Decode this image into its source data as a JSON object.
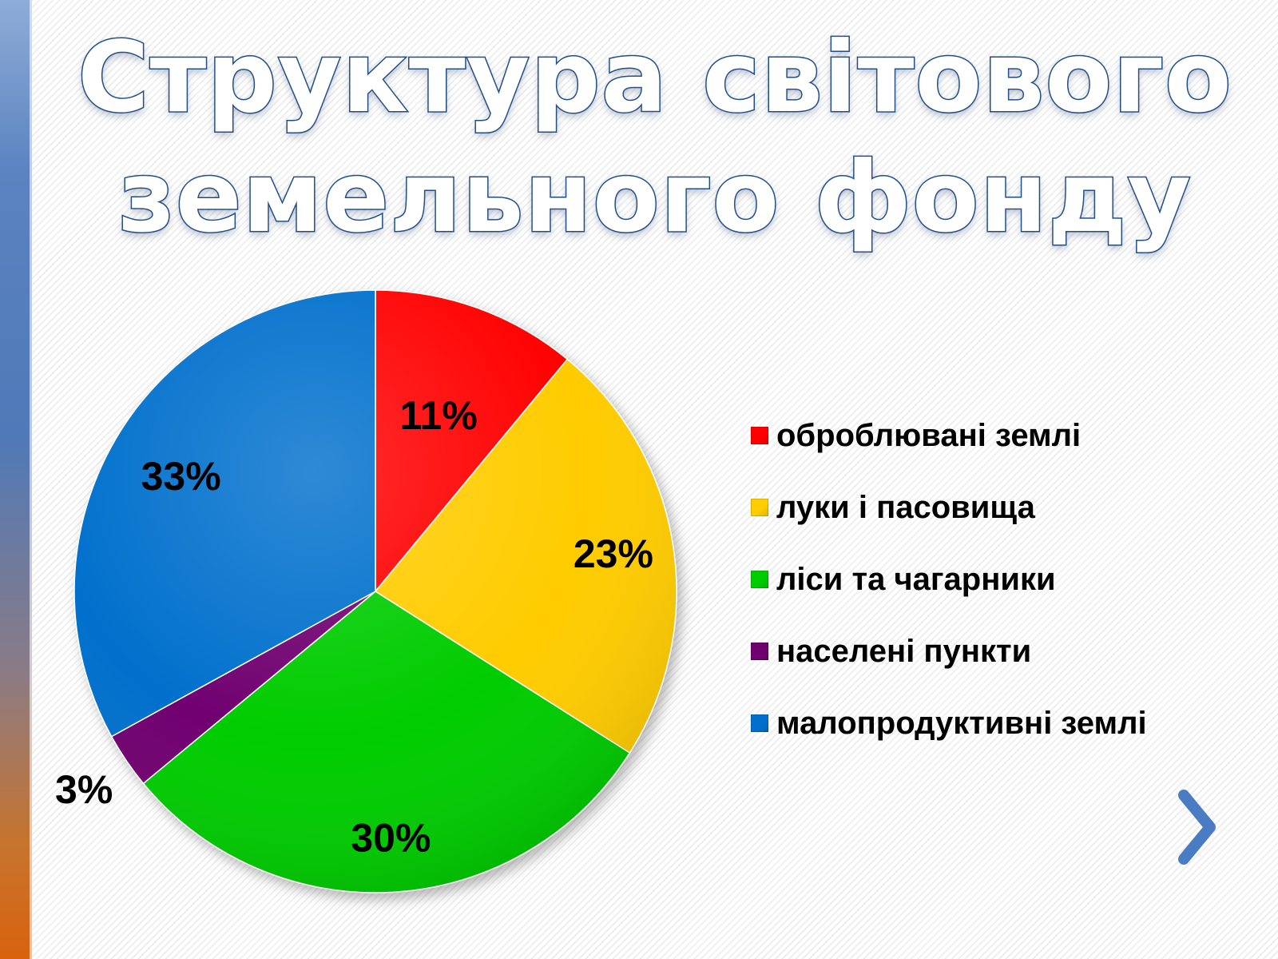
{
  "slide": {
    "title_line1": "Структура світового",
    "title_line2": "земельного фонду",
    "next_icon": "chevron-right-icon",
    "accent_color": "#4a7cc4"
  },
  "chart_data": {
    "type": "pie",
    "title": "Структура світового земельного фонду",
    "slices": [
      {
        "label": "оброблювані землі",
        "value": 11,
        "display": "11%",
        "color": "#ff0000"
      },
      {
        "label": "луки і пасовища",
        "value": 23,
        "display": "23%",
        "color": "#ffcc00"
      },
      {
        "label": "ліси та чагарники",
        "value": 30,
        "display": "30%",
        "color": "#00cc00"
      },
      {
        "label": "населені пункти",
        "value": 3,
        "display": "3%",
        "color": "#700070"
      },
      {
        "label": "малопродуктивні землі",
        "value": 33,
        "display": "33%",
        "color": "#0070cc"
      }
    ],
    "start_angle": "12 o'clock",
    "direction": "clockwise",
    "legend_position": "right"
  }
}
